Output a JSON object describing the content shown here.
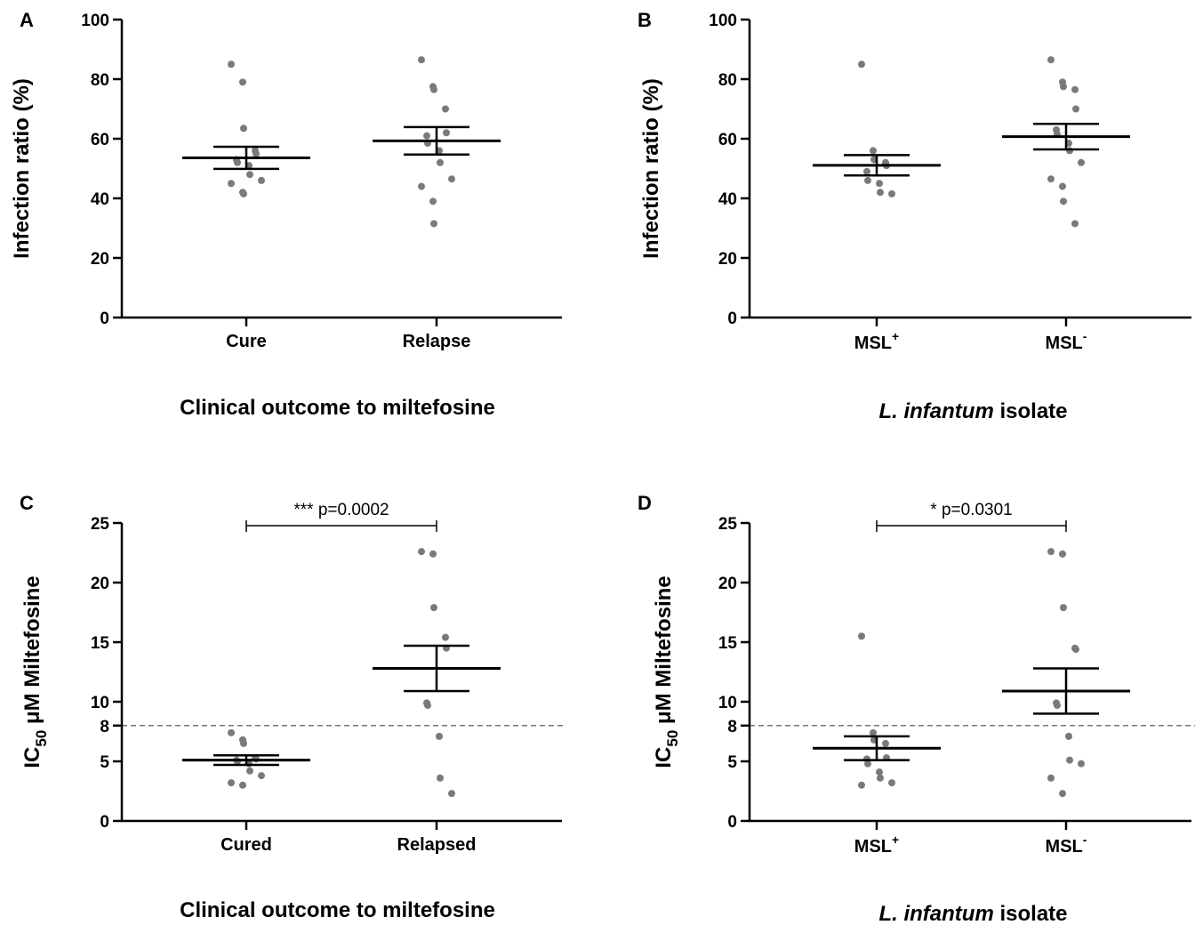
{
  "chart_data": [
    {
      "panel": "A",
      "type": "scatter",
      "ylabel": "Infection ratio (%)",
      "xlabel": "Clinical outcome to miltefosine",
      "categories": [
        "Cure",
        "Relapse"
      ],
      "ylim": [
        0,
        100
      ],
      "yticks": [
        0,
        20,
        40,
        60,
        80,
        100
      ],
      "points": [
        [
          85,
          79,
          63.5,
          56,
          55,
          53,
          52,
          51,
          48,
          46,
          45,
          42,
          41.5
        ],
        [
          86.5,
          77.5,
          76.5,
          70,
          62,
          61,
          58.5,
          56,
          52,
          46.5,
          44,
          39,
          31.5
        ]
      ],
      "mean": [
        53.6,
        59.3
      ],
      "sem": [
        3.7,
        4.6
      ]
    },
    {
      "panel": "B",
      "type": "scatter",
      "ylabel": "Infection ratio (%)",
      "xlabel_italic": "L. infantum",
      "xlabel_rest": " isolate",
      "categories": [
        {
          "base": "MSL",
          "sup": "+"
        },
        {
          "base": "MSL",
          "sup": "-"
        }
      ],
      "ylim": [
        0,
        100
      ],
      "yticks": [
        0,
        20,
        40,
        60,
        80,
        100
      ],
      "points": [
        [
          85,
          56,
          53,
          52,
          51,
          49,
          46,
          45,
          42,
          41.5
        ],
        [
          86.5,
          79,
          77.5,
          76.5,
          70,
          63,
          61.5,
          58.5,
          56,
          52,
          46.5,
          44,
          39,
          31.5
        ]
      ],
      "mean": [
        51.1,
        60.7
      ],
      "sem": [
        3.4,
        4.3
      ]
    },
    {
      "panel": "C",
      "type": "scatter",
      "ylabel_main": "IC",
      "ylabel_sub": "50",
      "ylabel_rest": " μM Miltefosine",
      "xlabel": "Clinical outcome to miltefosine",
      "categories": [
        "Cured",
        "Relapsed"
      ],
      "ylim": [
        0,
        25
      ],
      "yticks": [
        0,
        5,
        8,
        10,
        15,
        20,
        25
      ],
      "reference_line": 8,
      "points": [
        [
          7.4,
          6.8,
          6.5,
          5.3,
          5.2,
          5.1,
          5.0,
          4.8,
          4.2,
          3.8,
          3.2,
          3.0
        ],
        [
          22.6,
          22.4,
          17.9,
          15.4,
          14.5,
          9.9,
          9.7,
          7.1,
          3.6,
          2.3
        ]
      ],
      "mean": [
        5.1,
        12.8
      ],
      "sem": [
        0.4,
        1.9
      ],
      "significance": "*** p=0.0002"
    },
    {
      "panel": "D",
      "type": "scatter",
      "ylabel_main": "IC",
      "ylabel_sub": "50",
      "ylabel_rest": " μM Miltefosine",
      "xlabel_italic": "L. infantum",
      "xlabel_rest": " isolate",
      "categories": [
        {
          "base": "MSL",
          "sup": "+"
        },
        {
          "base": "MSL",
          "sup": "-"
        }
      ],
      "ylim": [
        0,
        25
      ],
      "yticks": [
        0,
        5,
        8,
        10,
        15,
        20,
        25
      ],
      "reference_line": 8,
      "points": [
        [
          15.5,
          7.4,
          6.8,
          6.5,
          5.3,
          5.2,
          4.8,
          4.1,
          3.6,
          3.2,
          3.0
        ],
        [
          22.6,
          22.4,
          17.9,
          14.5,
          14.4,
          9.9,
          9.7,
          7.1,
          5.1,
          4.8,
          3.6,
          2.3
        ]
      ],
      "mean": [
        6.1,
        10.9
      ],
      "sem": [
        1.0,
        1.9
      ],
      "significance": "* p=0.0301"
    }
  ]
}
